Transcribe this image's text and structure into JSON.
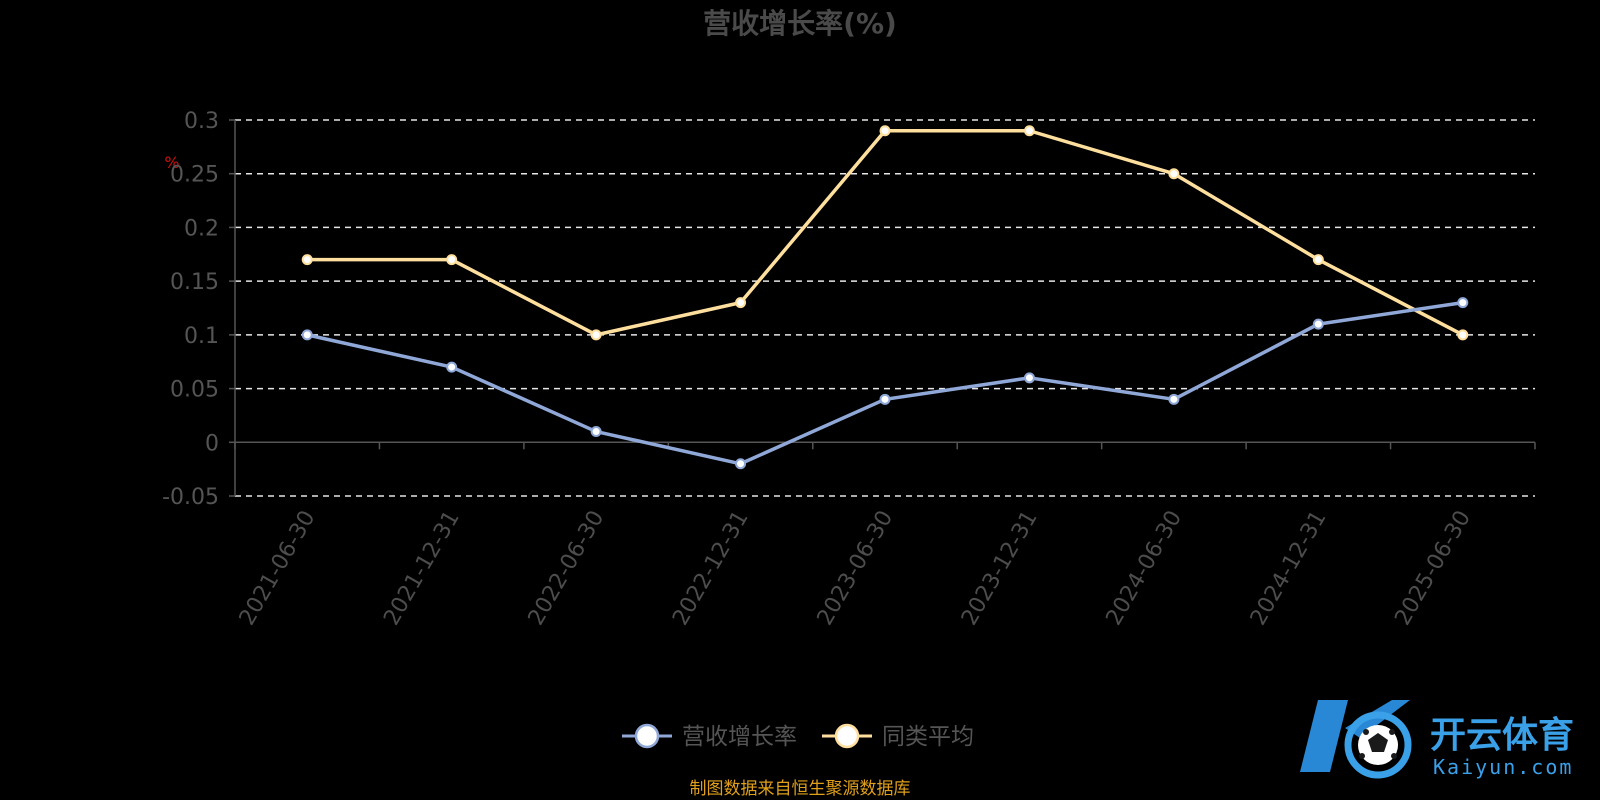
{
  "chart_data": {
    "type": "line",
    "title": "营收增长率(%)",
    "y_unit": "%",
    "x": [
      "2021-06-30",
      "2021-12-31",
      "2022-06-30",
      "2022-12-31",
      "2023-06-30",
      "2023-12-31",
      "2024-06-30",
      "2024-12-31",
      "2025-06-30"
    ],
    "ylim": [
      -0.05,
      0.3
    ],
    "yticks": [
      "0.3",
      "0.25",
      "0.2",
      "0.15",
      "0.1",
      "0.05",
      "0",
      "-0.05"
    ],
    "ytick_values": [
      0.3,
      0.25,
      0.2,
      0.15,
      0.1,
      0.05,
      0,
      -0.05
    ],
    "grid": true,
    "legend_position": "bottom-center",
    "series": [
      {
        "name": "营收增长率",
        "color": "#8fa8d8",
        "values": [
          0.1,
          0.07,
          0.01,
          -0.02,
          0.04,
          0.06,
          0.04,
          0.11,
          0.13
        ]
      },
      {
        "name": "同类平均",
        "color": "#ffdf9e",
        "values": [
          0.17,
          0.17,
          0.1,
          0.13,
          0.29,
          0.29,
          0.25,
          0.17,
          0.1
        ]
      }
    ]
  },
  "source_note": "制图数据来自恒生聚源数据库",
  "watermark": {
    "brand_cn": "开云体育",
    "brand_en": "Kaiyun.com",
    "mark": "K",
    "color": "#3aa0e8"
  },
  "colors": {
    "background": "#000000",
    "grid": "#e6e6e6",
    "axis": "#555555",
    "title": "#4a4a4a",
    "source": "#e0a01a"
  }
}
